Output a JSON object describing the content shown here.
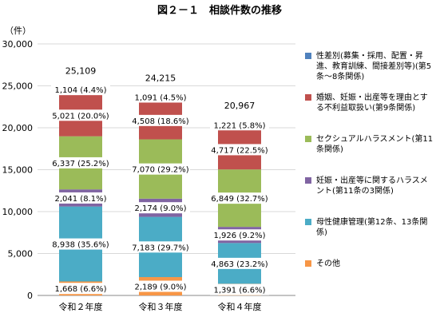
{
  "chart_data": {
    "type": "bar",
    "stacked": true,
    "title": "図２－１　相談件数の推移",
    "ylabel": "（件）",
    "ylim": [
      0,
      30000
    ],
    "yticks": [
      0,
      5000,
      10000,
      15000,
      20000,
      25000,
      30000
    ],
    "ytick_labels": [
      "0",
      "5,000",
      "10,000",
      "15,000",
      "20,000",
      "25,000",
      "30,000"
    ],
    "grid": true,
    "legend_position": "right",
    "categories": [
      "令和２年度",
      "令和３年度",
      "令和４年度"
    ],
    "totals": [
      25109,
      24215,
      20967
    ],
    "total_labels": [
      "25,109",
      "24,215",
      "20,967"
    ],
    "series": [
      {
        "name": "その他",
        "color": "#F79646",
        "values": [
          1668,
          2189,
          1391
        ],
        "labels": [
          "1,668 (6.6%)",
          "2,189 (9.0%)",
          "1,391 (6.6%)"
        ]
      },
      {
        "name": "母性健康管理(第12条、13条関係)",
        "color": "#4BACC6",
        "values": [
          8938,
          7183,
          4863
        ],
        "labels": [
          "8,938 (35.6%)",
          "7,183 (29.7%)",
          "4,863 (23.2%)"
        ]
      },
      {
        "name": "妊娠・出産等に関するハラスメント(第11条の3関係)",
        "color": "#8064A2",
        "values": [
          2041,
          2174,
          1926
        ],
        "labels": [
          "2,041 (8.1%)",
          "2,174 (9.0%)",
          "1,926 (9.2%)"
        ]
      },
      {
        "name": "セクシュアルハラスメント(第11条関係)",
        "color": "#9BBB59",
        "values": [
          6337,
          7070,
          6849
        ],
        "labels": [
          "6,337 (25.2%)",
          "7,070 (29.2%)",
          "6,849 (32.7%)"
        ]
      },
      {
        "name": "婚姻、妊娠・出産等を理由とする不利益取扱い(第9条関係)",
        "color": "#C0504D",
        "values": [
          5021,
          4508,
          4717
        ],
        "labels": [
          "5,021 (20.0%)",
          "4,508 (18.6%)",
          "4,717 (22.5%)"
        ]
      },
      {
        "name": "性差別(募集・採用、配置・昇進、教育訓練、間接差別等)(第5条～8条関係)",
        "color": "#4F81BD",
        "values": [
          1104,
          1091,
          1221
        ],
        "labels": [
          "1,104 (4.4%)",
          "1,091 (4.5%)",
          "1,221 (5.8%)"
        ]
      }
    ]
  },
  "legend": [
    {
      "name": "性差別(募集・採用、配置・昇進、教育訓練、間接差別等)(第5条～8条関係)",
      "color": "#4F81BD"
    },
    {
      "name": "婚姻、妊娠・出産等を理由とする不利益取扱い(第9条関係)",
      "color": "#C0504D"
    },
    {
      "name": "セクシュアルハラスメント(第11条関係)",
      "color": "#9BBB59"
    },
    {
      "name": "妊娠・出産等に関するハラスメント(第11条の3関係)",
      "color": "#8064A2"
    },
    {
      "name": "母性健康管理(第12条、13条関係)",
      "color": "#4BACC6"
    },
    {
      "name": "その他",
      "color": "#F79646"
    }
  ]
}
